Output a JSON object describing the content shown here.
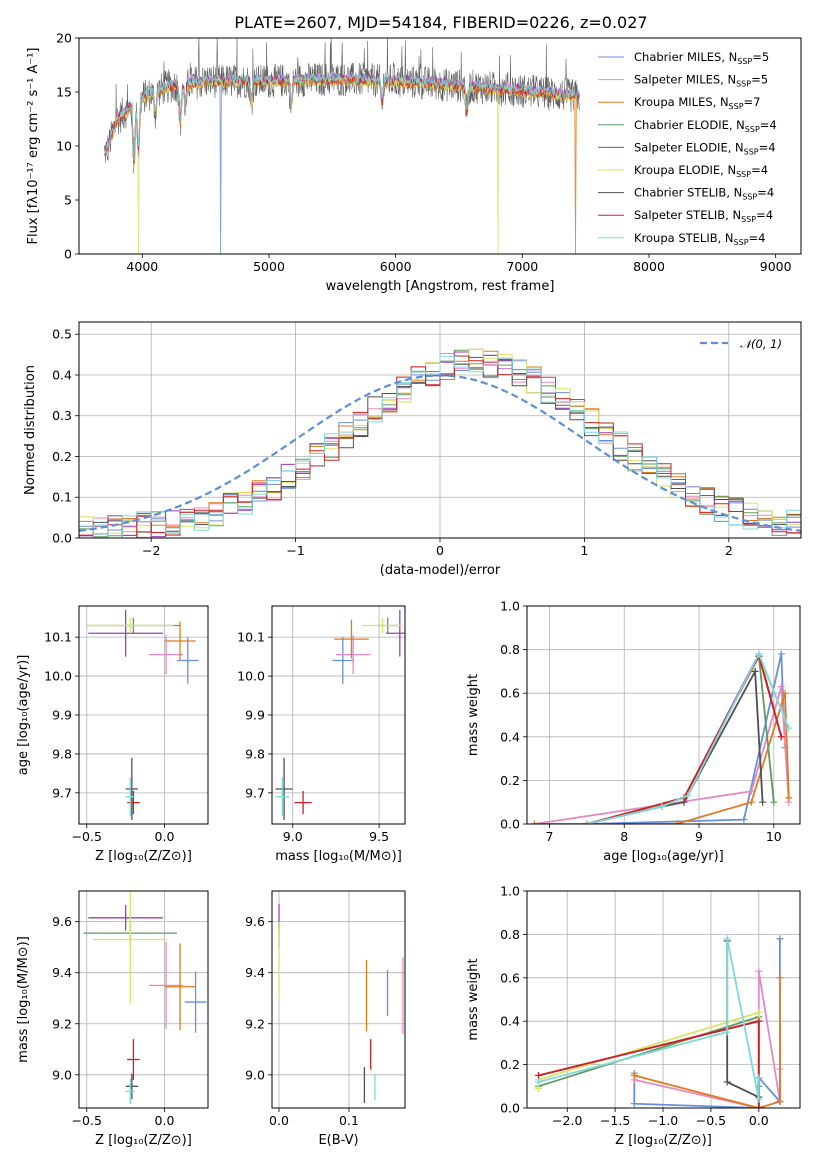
{
  "figure_title": "PLATE=2607, MJD=54184, FIBERID=0226, z=0.027",
  "colors": {
    "Chabrier MILES": "#6a8fd8",
    "Salpeter MILES": "#e58ac4",
    "Kroupa MILES": "#e07a1f",
    "Chabrier ELODIE": "#5f9a5f",
    "Salpeter ELODIE": "#9b3fb8",
    "Kroupa ELODIE": "#d9e36a",
    "Chabrier STELIB": "#505050",
    "Salpeter STELIB": "#cc2222",
    "Kroupa STELIB": "#7fd8d8"
  },
  "legend": [
    {
      "text": "Chabrier MILES, N",
      "sub": "SSP",
      "suffix": "=5",
      "color": "Chabrier MILES"
    },
    {
      "text": "Salpeter MILES, N",
      "sub": "SSP",
      "suffix": "=5",
      "color": "Salpeter MILES"
    },
    {
      "text": "Kroupa MILES, N",
      "sub": "SSP",
      "suffix": "=7",
      "color": "Kroupa MILES"
    },
    {
      "text": "Chabrier ELODIE, N",
      "sub": "SSP",
      "suffix": "=4",
      "color": "Chabrier ELODIE"
    },
    {
      "text": "Salpeter ELODIE, N",
      "sub": "SSP",
      "suffix": "=4",
      "color": "Salpeter ELODIE"
    },
    {
      "text": "Kroupa ELODIE, N",
      "sub": "SSP",
      "suffix": "=4",
      "color": "Kroupa ELODIE"
    },
    {
      "text": "Chabrier STELIB, N",
      "sub": "SSP",
      "suffix": "=4",
      "color": "Chabrier STELIB"
    },
    {
      "text": "Salpeter STELIB, N",
      "sub": "SSP",
      "suffix": "=4",
      "color": "Salpeter STELIB"
    },
    {
      "text": "Kroupa STELIB, N",
      "sub": "SSP",
      "suffix": "=4",
      "color": "Kroupa STELIB"
    }
  ],
  "chart_data": [
    {
      "id": "spectrum",
      "type": "line",
      "xlabel": "wavelength [Angstrom, rest frame]",
      "ylabel": "Flux [fλ10⁻¹⁷ erg cm⁻² s⁻¹ A⁻¹]",
      "xlim": [
        3500,
        9200
      ],
      "ylim": [
        0,
        20
      ],
      "xticks": [
        4000,
        5000,
        6000,
        7000,
        8000,
        9000
      ],
      "yticks": [
        0,
        5,
        10,
        15,
        20
      ],
      "grid": false,
      "legend_position": "upper-right",
      "data_range_x": [
        3700,
        7450
      ],
      "continuum": [
        [
          3720,
          9.5
        ],
        [
          3800,
          12.5
        ],
        [
          3900,
          13.5
        ],
        [
          4000,
          14.5
        ],
        [
          4200,
          15.5
        ],
        [
          4500,
          16.0
        ],
        [
          5000,
          16.0
        ],
        [
          5500,
          16.2
        ],
        [
          6000,
          16.0
        ],
        [
          6500,
          15.6
        ],
        [
          7000,
          15.1
        ],
        [
          7440,
          14.6
        ]
      ],
      "absorption_features": [
        [
          3934,
          5.5
        ],
        [
          3969,
          4.5
        ],
        [
          4102,
          2.0
        ],
        [
          4300,
          3.5
        ],
        [
          4340,
          2.0
        ],
        [
          4861,
          2.0
        ],
        [
          5175,
          2.5
        ],
        [
          5893,
          2.0
        ],
        [
          6563,
          2.5
        ]
      ],
      "dropouts": [
        [
          3970,
          "Kroupa ELODIE"
        ],
        [
          4620,
          "Chabrier MILES"
        ],
        [
          6810,
          "Kroupa ELODIE"
        ],
        [
          7420,
          "Kroupa MILES"
        ]
      ]
    },
    {
      "id": "residual_hist",
      "type": "histogram",
      "xlabel": "(data-model)/error",
      "ylabel": "Normed distribution",
      "xlim": [
        -2.5,
        2.5
      ],
      "ylim": [
        0,
        0.53
      ],
      "xticks": [
        -2,
        -1,
        0,
        1,
        2
      ],
      "yticks": [
        0.0,
        0.1,
        0.2,
        0.3,
        0.4,
        0.5
      ],
      "grid": true,
      "legend_position": "upper-right",
      "reference_curve": {
        "label": "𝒩(0, 1)",
        "mean": 0,
        "sigma": 1,
        "color": "#5b8fd8"
      },
      "bin_width": 0.1,
      "series_names": [
        "Chabrier MILES",
        "Salpeter MILES",
        "Kroupa MILES",
        "Chabrier ELODIE",
        "Salpeter ELODIE",
        "Kroupa ELODIE",
        "Chabrier STELIB",
        "Salpeter STELIB",
        "Kroupa STELIB"
      ]
    },
    {
      "id": "age_vs_Z",
      "type": "errorbar",
      "xlabel": "Z [log₁₀(Z/Z⊙)]",
      "ylabel": "age  [log₁₀(age/yr)]",
      "xlim": [
        -0.55,
        0.28
      ],
      "ylim": [
        9.62,
        10.18
      ],
      "xticks": [
        -0.5,
        0.0
      ],
      "yticks": [
        9.7,
        9.8,
        9.9,
        10.0,
        10.1
      ],
      "grid": true,
      "points": [
        {
          "s": "Chabrier MILES",
          "x": 0.15,
          "y": 10.04,
          "xerr": 0.07,
          "yerr": 0.06
        },
        {
          "s": "Salpeter MILES",
          "x": 0.01,
          "y": 10.055,
          "xerr": 0.11,
          "yerr": 0.05
        },
        {
          "s": "Kroupa MILES",
          "x": 0.1,
          "y": 10.09,
          "xerr": 0.1,
          "yerr": 0.05
        },
        {
          "s": "Chabrier ELODIE",
          "x": -0.2,
          "y": 10.13,
          "xerr": 0.3,
          "yerr": 0.02
        },
        {
          "s": "Salpeter ELODIE",
          "x": -0.25,
          "y": 10.11,
          "xerr": 0.24,
          "yerr": 0.06
        },
        {
          "s": "Kroupa ELODIE",
          "x": -0.22,
          "y": 10.13,
          "xerr": 0.28,
          "yerr": 0.02
        },
        {
          "s": "Chabrier STELIB",
          "x": -0.21,
          "y": 9.71,
          "xerr": 0.04,
          "yerr": 0.08
        },
        {
          "s": "Salpeter STELIB",
          "x": -0.2,
          "y": 9.675,
          "xerr": 0.04,
          "yerr": 0.03
        },
        {
          "s": "Kroupa STELIB",
          "x": -0.22,
          "y": 9.69,
          "xerr": 0.03,
          "yerr": 0.05
        }
      ]
    },
    {
      "id": "age_vs_mass",
      "type": "errorbar",
      "xlabel": "mass [log₁₀(M/M⊙)]",
      "ylabel": "",
      "xlim": [
        8.88,
        9.65
      ],
      "ylim": [
        9.62,
        10.18
      ],
      "xticks": [
        9.0,
        9.5
      ],
      "yticks": [
        9.7,
        9.8,
        9.9,
        10.0,
        10.1
      ],
      "grid": true,
      "points": [
        {
          "s": "Chabrier MILES",
          "x": 9.29,
          "y": 10.04,
          "xerr": 0.06,
          "yerr": 0.06
        },
        {
          "s": "Salpeter MILES",
          "x": 9.35,
          "y": 10.055,
          "xerr": 0.1,
          "yerr": 0.05
        },
        {
          "s": "Kroupa MILES",
          "x": 9.34,
          "y": 10.095,
          "xerr": 0.1,
          "yerr": 0.05
        },
        {
          "s": "Chabrier ELODIE",
          "x": 9.55,
          "y": 10.13,
          "xerr": 0.06,
          "yerr": 0.02
        },
        {
          "s": "Salpeter ELODIE",
          "x": 9.62,
          "y": 10.11,
          "xerr": 0.08,
          "yerr": 0.06
        },
        {
          "s": "Kroupa ELODIE",
          "x": 9.52,
          "y": 10.13,
          "xerr": 0.12,
          "yerr": 0.02
        },
        {
          "s": "Chabrier STELIB",
          "x": 8.95,
          "y": 9.71,
          "xerr": 0.05,
          "yerr": 0.08
        },
        {
          "s": "Salpeter STELIB",
          "x": 9.06,
          "y": 9.675,
          "xerr": 0.05,
          "yerr": 0.03
        },
        {
          "s": "Kroupa STELIB",
          "x": 8.94,
          "y": 9.69,
          "xerr": 0.04,
          "yerr": 0.05
        }
      ]
    },
    {
      "id": "mass_weight_vs_age",
      "type": "line",
      "xlabel": "age  [log₁₀(age/yr)]",
      "ylabel": "mass weight",
      "xlim": [
        6.7,
        10.35
      ],
      "ylim": [
        0,
        1.0
      ],
      "xticks": [
        7,
        8,
        9,
        10
      ],
      "yticks": [
        0.0,
        0.2,
        0.4,
        0.6,
        0.8,
        1.0
      ],
      "grid": true,
      "series": [
        {
          "name": "Chabrier MILES",
          "x": [
            7.5,
            9.6,
            10.1,
            10.15
          ],
          "y": [
            0.0,
            0.02,
            0.78,
            0.35
          ]
        },
        {
          "name": "Salpeter MILES",
          "x": [
            6.8,
            9.7,
            10.1,
            10.2
          ],
          "y": [
            0.0,
            0.15,
            0.63,
            0.1
          ]
        },
        {
          "name": "Kroupa MILES",
          "x": [
            6.8,
            8.7,
            9.7,
            10.15,
            10.2
          ],
          "y": [
            0.0,
            0.0,
            0.1,
            0.6,
            0.12
          ]
        },
        {
          "name": "Chabrier ELODIE",
          "x": [
            7.5,
            8.8,
            9.8,
            10.0
          ],
          "y": [
            0.0,
            0.12,
            0.77,
            0.1
          ]
        },
        {
          "name": "Salpeter ELODIE",
          "x": [
            7.5,
            8.8,
            9.8,
            10.1
          ],
          "y": [
            0.0,
            0.12,
            0.78,
            0.4
          ]
        },
        {
          "name": "Kroupa ELODIE",
          "x": [
            7.5,
            8.8,
            9.8,
            10.2
          ],
          "y": [
            0.0,
            0.12,
            0.77,
            0.44
          ]
        },
        {
          "name": "Chabrier STELIB",
          "x": [
            7.5,
            8.5,
            8.8,
            9.75,
            9.85
          ],
          "y": [
            0.0,
            0.08,
            0.1,
            0.7,
            0.1
          ]
        },
        {
          "name": "Salpeter STELIB",
          "x": [
            7.5,
            8.8,
            9.8,
            10.1
          ],
          "y": [
            0.0,
            0.12,
            0.77,
            0.4
          ]
        },
        {
          "name": "Kroupa STELIB",
          "x": [
            7.5,
            8.5,
            8.85,
            9.8,
            10.2
          ],
          "y": [
            0.0,
            0.08,
            0.13,
            0.78,
            0.44
          ]
        }
      ]
    },
    {
      "id": "mass_vs_Z",
      "type": "errorbar",
      "xlabel": "Z [log₁₀(Z/Z⊙)]",
      "ylabel": "mass [log₁₀(M/M⊙)]",
      "xlim": [
        -0.55,
        0.28
      ],
      "ylim": [
        8.87,
        9.72
      ],
      "xticks": [
        -0.5,
        0.0
      ],
      "yticks": [
        9.0,
        9.2,
        9.4,
        9.6
      ],
      "grid": true,
      "points": [
        {
          "s": "Chabrier MILES",
          "x": 0.2,
          "y": 9.285,
          "xerr": 0.07,
          "yerr": 0.12
        },
        {
          "s": "Salpeter MILES",
          "x": 0.01,
          "y": 9.35,
          "xerr": 0.11,
          "yerr": 0.17
        },
        {
          "s": "Kroupa MILES",
          "x": 0.1,
          "y": 9.345,
          "xerr": 0.1,
          "yerr": 0.17
        },
        {
          "s": "Chabrier ELODIE",
          "x": -0.22,
          "y": 9.555,
          "xerr": 0.3,
          "yerr": 0.05
        },
        {
          "s": "Salpeter ELODIE",
          "x": -0.25,
          "y": 9.615,
          "xerr": 0.24,
          "yerr": 0.05
        },
        {
          "s": "Kroupa ELODIE",
          "x": -0.22,
          "y": 9.53,
          "xerr": 0.24,
          "yerr": 0.25
        },
        {
          "s": "Chabrier STELIB",
          "x": -0.21,
          "y": 8.955,
          "xerr": 0.04,
          "yerr": 0.05
        },
        {
          "s": "Salpeter STELIB",
          "x": -0.2,
          "y": 9.06,
          "xerr": 0.04,
          "yerr": 0.08
        },
        {
          "s": "Kroupa STELIB",
          "x": -0.22,
          "y": 8.935,
          "xerr": 0.03,
          "yerr": 0.05
        }
      ]
    },
    {
      "id": "ebv",
      "type": "errorbar",
      "xlabel": "E(B-V)",
      "ylabel": "",
      "xlim": [
        -0.01,
        0.18
      ],
      "ylim": [
        8.87,
        9.72
      ],
      "xticks": [
        0.0,
        0.1
      ],
      "yticks": [
        9.0,
        9.2,
        9.4,
        9.6
      ],
      "grid": true,
      "points": [
        {
          "s": "Chabrier MILES",
          "x": 0.155,
          "y": 9.32,
          "yerr": 0.09
        },
        {
          "s": "Salpeter MILES",
          "x": 0.177,
          "y": 9.31,
          "yerr": 0.15
        },
        {
          "s": "Kroupa MILES",
          "x": 0.125,
          "y": 9.31,
          "yerr": 0.14
        },
        {
          "s": "Chabrier ELODIE",
          "x": 0.0,
          "y": 9.55,
          "yerr": 0.05
        },
        {
          "s": "Salpeter ELODIE",
          "x": 0.0,
          "y": 9.62,
          "yerr": 0.05
        },
        {
          "s": "Kroupa ELODIE",
          "x": 0.0,
          "y": 9.45,
          "yerr": 0.15
        },
        {
          "s": "Chabrier STELIB",
          "x": 0.122,
          "y": 8.96,
          "yerr": 0.07
        },
        {
          "s": "Salpeter STELIB",
          "x": 0.131,
          "y": 9.08,
          "yerr": 0.06
        },
        {
          "s": "Kroupa STELIB",
          "x": 0.137,
          "y": 8.95,
          "yerr": 0.05
        }
      ]
    },
    {
      "id": "mass_weight_vs_Z",
      "type": "line",
      "xlabel": "Z [log₁₀(Z/Z⊙)]",
      "ylabel": "mass weight",
      "xlim": [
        -2.42,
        0.43
      ],
      "ylim": [
        0,
        1.0
      ],
      "xticks": [
        -2.0,
        -1.5,
        -1.0,
        -0.5,
        0.0
      ],
      "yticks": [
        0.0,
        0.2,
        0.4,
        0.6,
        0.8,
        1.0
      ],
      "grid": true,
      "series": [
        {
          "name": "Chabrier MILES",
          "x": [
            -1.3,
            -1.3,
            0.0,
            0.0,
            0.22,
            0.22
          ],
          "y": [
            0.16,
            0.02,
            0.0,
            0.14,
            0.03,
            0.78
          ]
        },
        {
          "name": "Salpeter MILES",
          "x": [
            -1.3,
            0.0,
            0.0,
            0.22,
            0.22
          ],
          "y": [
            0.13,
            0.0,
            0.63,
            0.03,
            0.18
          ]
        },
        {
          "name": "Kroupa MILES",
          "x": [
            -1.3,
            0.0,
            0.22,
            0.22,
            0.22
          ],
          "y": [
            0.15,
            0.0,
            0.03,
            0.6,
            0.03
          ]
        },
        {
          "name": "Chabrier ELODIE",
          "x": [
            -2.3,
            0.0,
            0.0
          ],
          "y": [
            0.1,
            0.42,
            0.1
          ]
        },
        {
          "name": "Salpeter ELODIE",
          "x": [
            -2.3,
            0.0,
            0.0
          ],
          "y": [
            0.15,
            0.4,
            0.0
          ]
        },
        {
          "name": "Kroupa ELODIE",
          "x": [
            -2.3,
            -2.3,
            0.0,
            0.0
          ],
          "y": [
            0.09,
            0.13,
            0.44,
            0.05
          ]
        },
        {
          "name": "Chabrier STELIB",
          "x": [
            -0.33,
            -0.33,
            0.0,
            0.0
          ],
          "y": [
            0.77,
            0.12,
            0.05,
            0.14
          ]
        },
        {
          "name": "Salpeter STELIB",
          "x": [
            -2.3,
            0.0,
            0.0
          ],
          "y": [
            0.15,
            0.4,
            0.0
          ]
        },
        {
          "name": "Kroupa STELIB",
          "x": [
            -2.3,
            -0.33,
            -0.33,
            0.0,
            0.0
          ],
          "y": [
            0.12,
            0.35,
            0.78,
            0.04,
            0.14
          ]
        }
      ]
    }
  ]
}
